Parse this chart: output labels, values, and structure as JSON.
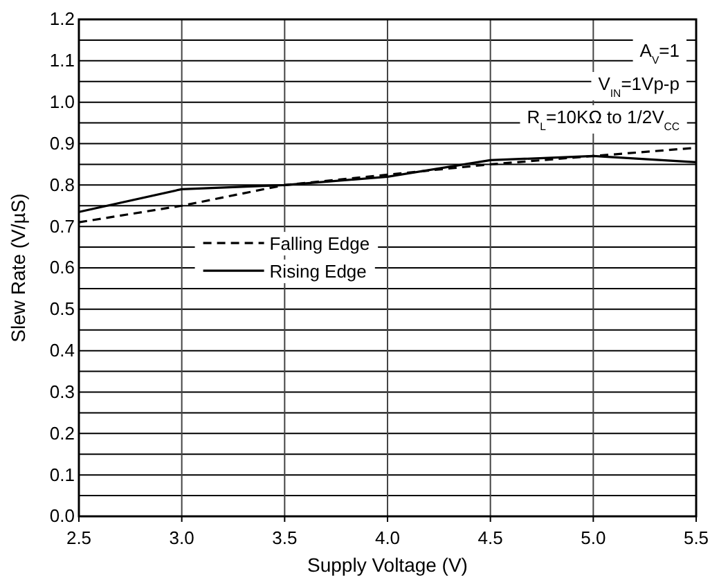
{
  "chart_data": {
    "type": "line",
    "xlabel": "Supply Voltage (V)",
    "ylabel": "Slew Rate (V/µS)",
    "x": [
      2.5,
      3.0,
      3.5,
      4.0,
      4.5,
      5.0,
      5.5
    ],
    "series": [
      {
        "name": "Falling Edge",
        "color": "#000000",
        "line_style": "dashed",
        "values": [
          0.71,
          0.75,
          0.8,
          0.825,
          0.85,
          0.87,
          0.89
        ]
      },
      {
        "name": "Rising Edge",
        "color": "#000000",
        "line_style": "solid",
        "values": [
          0.735,
          0.79,
          0.8,
          0.82,
          0.86,
          0.87,
          0.855
        ]
      }
    ],
    "xlim": [
      2.5,
      5.5
    ],
    "xticks": [
      2.5,
      {
        "value": 3,
        "label": "3.0"
      },
      3.5,
      {
        "value": 4,
        "label": "4.0"
      },
      4.5,
      {
        "value": 5,
        "label": "5.0"
      },
      5.5
    ],
    "ylim": [
      0,
      1.2
    ],
    "yticks": [
      {
        "value": 0,
        "label": "0.0"
      },
      {
        "value": 0.05,
        "label": null
      },
      {
        "value": 0.1,
        "label": "0.1"
      },
      {
        "value": 0.15,
        "label": null
      },
      {
        "value": 0.2,
        "label": "0.2"
      },
      {
        "value": 0.25,
        "label": null
      },
      {
        "value": 0.3,
        "label": "0.3"
      },
      {
        "value": 0.35,
        "label": null
      },
      {
        "value": 0.4,
        "label": "0.4"
      },
      {
        "value": 0.45,
        "label": null
      },
      {
        "value": 0.5,
        "label": "0.5"
      },
      {
        "value": 0.55,
        "label": null
      },
      {
        "value": 0.6,
        "label": "0.6"
      },
      {
        "value": 0.65,
        "label": null
      },
      {
        "value": 0.7,
        "label": "0.7"
      },
      {
        "value": 0.75,
        "label": null
      },
      {
        "value": 0.8,
        "label": "0.8"
      },
      {
        "value": 0.85,
        "label": null
      },
      {
        "value": 0.9,
        "label": "0.9"
      },
      {
        "value": 0.95,
        "label": null
      },
      {
        "value": 1.0,
        "label": "1.0"
      },
      {
        "value": 1.05,
        "label": null
      },
      {
        "value": 1.1,
        "label": "1.1"
      },
      {
        "value": 1.15,
        "label": null
      },
      {
        "value": 1.2,
        "label": "1.2"
      }
    ],
    "grid": true,
    "legend": "center",
    "marker": "none",
    "annotations": [
      "A$_{V}$=1",
      "V$_{IN}$=1Vp-p",
      "R$_{L}$=10KΩ to 1/2V$_{CC}$"
    ]
  }
}
